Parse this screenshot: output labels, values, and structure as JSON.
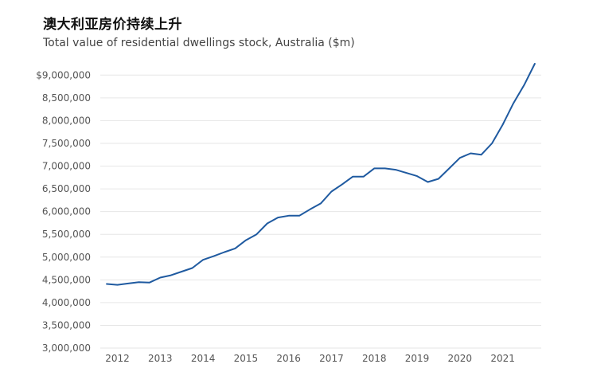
{
  "title": "澳大利亚房价持续上升",
  "subtitle": "Total value of residential dwellings stock, Australia ($m)",
  "colors": {
    "line": "#1f5aa0",
    "grid": "#e6e6e6",
    "text": "#555555"
  },
  "chart_data": {
    "type": "line",
    "title": "澳大利亚房价持续上升",
    "subtitle": "Total value of residential dwellings stock, Australia ($m)",
    "xlabel": "",
    "ylabel": "",
    "grid": true,
    "legend": "none",
    "ylim": [
      3000000,
      9250000
    ],
    "xlim": [
      2011.6,
      2021.9
    ],
    "yticks": [
      3000000,
      3500000,
      4000000,
      4500000,
      5000000,
      5500000,
      6000000,
      6500000,
      7000000,
      7500000,
      8000000,
      8500000,
      9000000
    ],
    "ytick_labels": [
      "3,000,000",
      "3,500,000",
      "4,000,000",
      "4,500,000",
      "5,000,000",
      "5,500,000",
      "6,000,000",
      "6,500,000",
      "7,000,000",
      "7,500,000",
      "8,000,000",
      "8,500,000",
      "$9,000,000"
    ],
    "xticks": [
      2012,
      2013,
      2014,
      2015,
      2016,
      2017,
      2018,
      2019,
      2020,
      2021
    ],
    "xtick_labels": [
      "2012",
      "2013",
      "2014",
      "2015",
      "2016",
      "2017",
      "2018",
      "2019",
      "2020",
      "2021"
    ],
    "series": [
      {
        "name": "Total value of residential dwellings stock",
        "x": [
          2011.75,
          2012.0,
          2012.25,
          2012.5,
          2012.75,
          2013.0,
          2013.25,
          2013.5,
          2013.75,
          2014.0,
          2014.25,
          2014.5,
          2014.75,
          2015.0,
          2015.25,
          2015.5,
          2015.75,
          2016.0,
          2016.25,
          2016.5,
          2016.75,
          2017.0,
          2017.25,
          2017.5,
          2017.75,
          2018.0,
          2018.25,
          2018.5,
          2018.75,
          2019.0,
          2019.25,
          2019.5,
          2019.75,
          2020.0,
          2020.25,
          2020.5,
          2020.75,
          2021.0,
          2021.25,
          2021.5,
          2021.75
        ],
        "values": [
          4410000,
          4390000,
          4420000,
          4450000,
          4440000,
          4550000,
          4600000,
          4680000,
          4760000,
          4940000,
          5020000,
          5110000,
          5190000,
          5370000,
          5500000,
          5740000,
          5870000,
          5910000,
          5910000,
          6050000,
          6180000,
          6440000,
          6600000,
          6770000,
          6770000,
          6950000,
          6950000,
          6920000,
          6850000,
          6780000,
          6650000,
          6720000,
          6950000,
          7180000,
          7280000,
          7250000,
          7500000,
          7910000,
          8380000,
          8780000,
          9250000
        ]
      }
    ]
  }
}
